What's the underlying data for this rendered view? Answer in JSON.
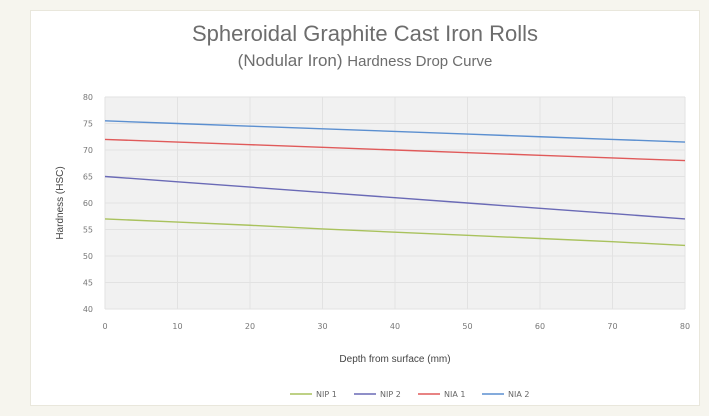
{
  "chart_data": {
    "type": "line",
    "title_line1": "Spheroidal Graphite Cast Iron Rolls",
    "title_line2_a": "(Nodular Iron)",
    "title_line2_b": "Hardness Drop Curve",
    "xlabel": "Depth from surface (mm)",
    "ylabel": "Hardness (HSC)",
    "x": [
      0,
      10,
      20,
      30,
      40,
      50,
      60,
      70,
      80
    ],
    "xlim": [
      0,
      80
    ],
    "ylim": [
      40,
      80
    ],
    "yticks": [
      40,
      45,
      50,
      55,
      60,
      65,
      70,
      75,
      80
    ],
    "grid": true,
    "legend_position": "bottom",
    "series": [
      {
        "name": "NIP 1",
        "color": "#a9c25d",
        "values": [
          57,
          56.4,
          55.8,
          55.1,
          54.5,
          53.9,
          53.3,
          52.7,
          52
        ]
      },
      {
        "name": "NIP 2",
        "color": "#6a6ab6",
        "values": [
          65,
          64,
          63,
          62,
          61,
          60,
          59,
          58,
          57
        ]
      },
      {
        "name": "NIA 1",
        "color": "#e05a5a",
        "values": [
          72,
          71.5,
          71,
          70.5,
          70,
          69.5,
          69,
          68.5,
          68
        ]
      },
      {
        "name": "NIA 2",
        "color": "#5b8fd0",
        "values": [
          75.5,
          75,
          74.5,
          74,
          73.5,
          73,
          72.5,
          72,
          71.5
        ]
      }
    ]
  }
}
